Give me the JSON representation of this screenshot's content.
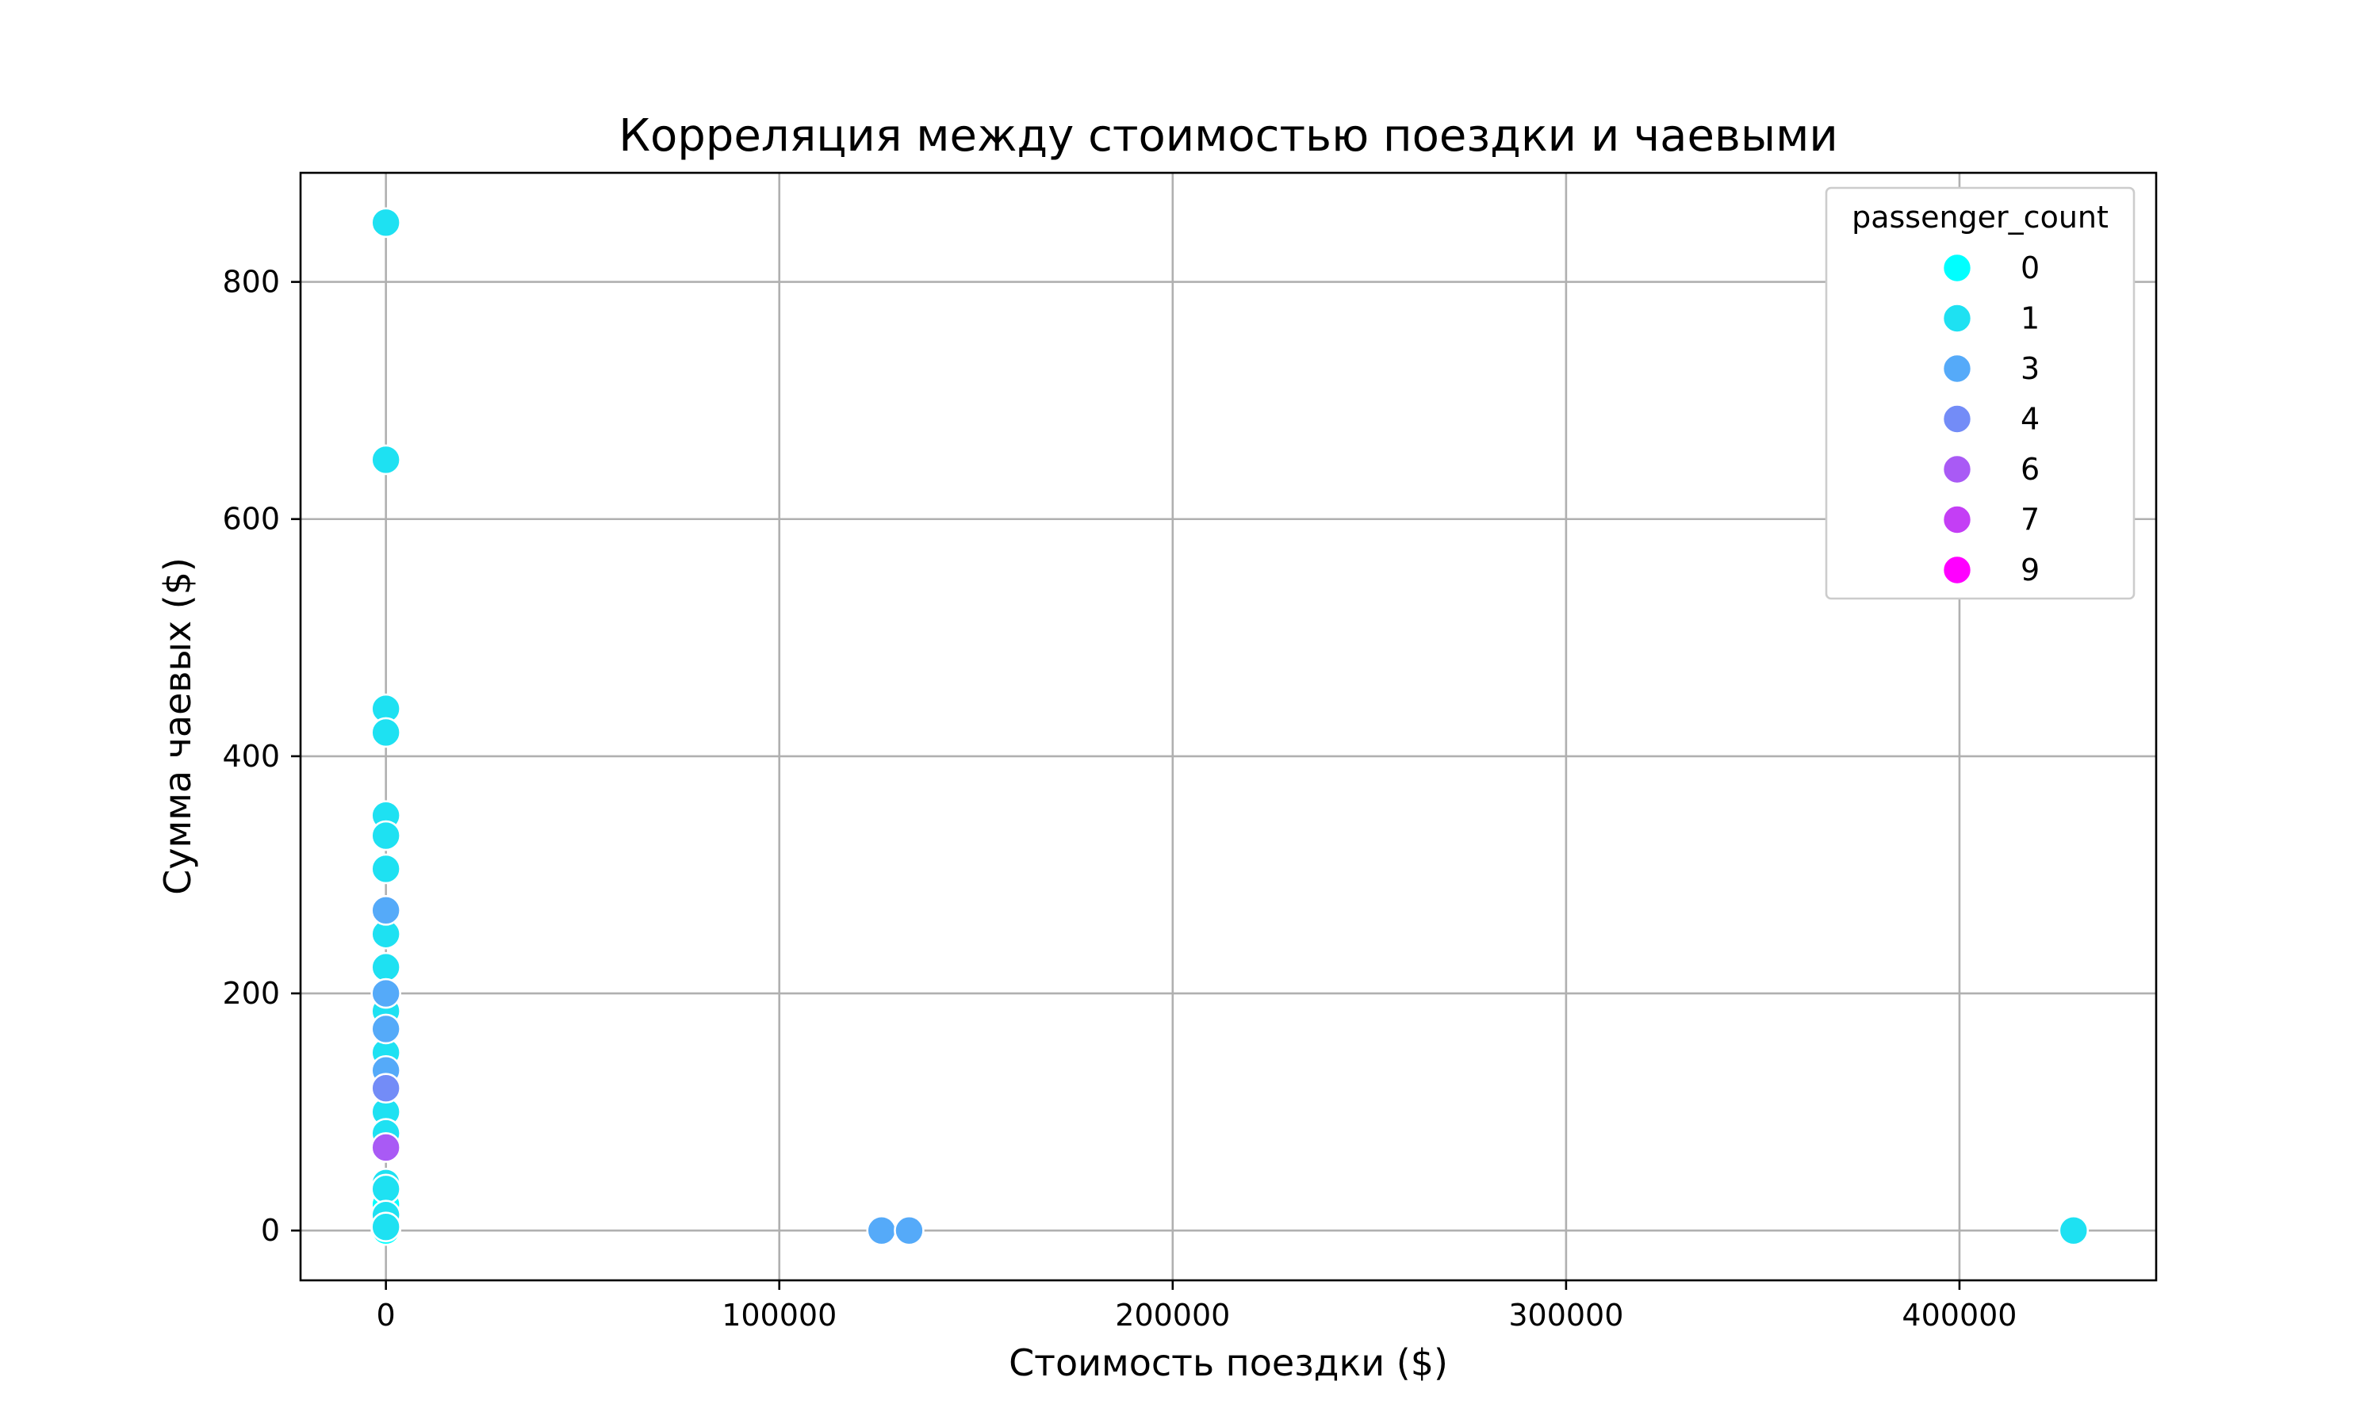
{
  "chart_data": {
    "type": "scatter",
    "title": "Корреляция между стоимостью поездки и чаевыми",
    "xlabel": "Стоимость поездки ($)",
    "ylabel": "Сумма чаевых ($)",
    "xlim": [
      -21700,
      450000
    ],
    "ylim": [
      -42,
      892
    ],
    "x_ticks": [
      0,
      100000,
      200000,
      300000,
      400000
    ],
    "x_tick_labels": [
      "0",
      "100000",
      "200000",
      "300000",
      "400000"
    ],
    "y_ticks": [
      0,
      200,
      400,
      600,
      800
    ],
    "y_tick_labels": [
      "0",
      "200",
      "400",
      "600",
      "800"
    ],
    "grid": true,
    "legend": {
      "title": "passenger_count",
      "position": "top-right",
      "entries": [
        {
          "label": "0",
          "color": "#00ffff"
        },
        {
          "label": "1",
          "color": "#1ee1f2"
        },
        {
          "label": "3",
          "color": "#55aaf9"
        },
        {
          "label": "4",
          "color": "#738cf7"
        },
        {
          "label": "6",
          "color": "#a95af5"
        },
        {
          "label": "7",
          "color": "#c43ef5"
        },
        {
          "label": "9",
          "color": "#ff00ff"
        }
      ]
    },
    "series": [
      {
        "name": "0",
        "color": "#00ffff",
        "points": [
          [
            0,
            5
          ],
          [
            0,
            0
          ],
          [
            0,
            22
          ]
        ]
      },
      {
        "name": "1",
        "color": "#1ee1f2",
        "points": [
          [
            0,
            850
          ],
          [
            0,
            650
          ],
          [
            0,
            440
          ],
          [
            0,
            420
          ],
          [
            0,
            350
          ],
          [
            0,
            333
          ],
          [
            0,
            305
          ],
          [
            0,
            250
          ],
          [
            0,
            222
          ],
          [
            0,
            185
          ],
          [
            0,
            150
          ],
          [
            0,
            100
          ],
          [
            0,
            82
          ],
          [
            0,
            40
          ],
          [
            0,
            35
          ],
          [
            0,
            13
          ],
          [
            0,
            3
          ],
          [
            429000,
            0
          ]
        ]
      },
      {
        "name": "3",
        "color": "#55aaf9",
        "points": [
          [
            0,
            270
          ],
          [
            0,
            200
          ],
          [
            0,
            170
          ],
          [
            0,
            135
          ],
          [
            126000,
            0
          ],
          [
            133000,
            0
          ]
        ]
      },
      {
        "name": "4",
        "color": "#738cf7",
        "points": [
          [
            0,
            120
          ]
        ]
      },
      {
        "name": "6",
        "color": "#a95af5",
        "points": [
          [
            0,
            70
          ]
        ]
      },
      {
        "name": "7",
        "color": "#c43ef5",
        "points": []
      },
      {
        "name": "9",
        "color": "#ff00ff",
        "points": []
      }
    ]
  }
}
